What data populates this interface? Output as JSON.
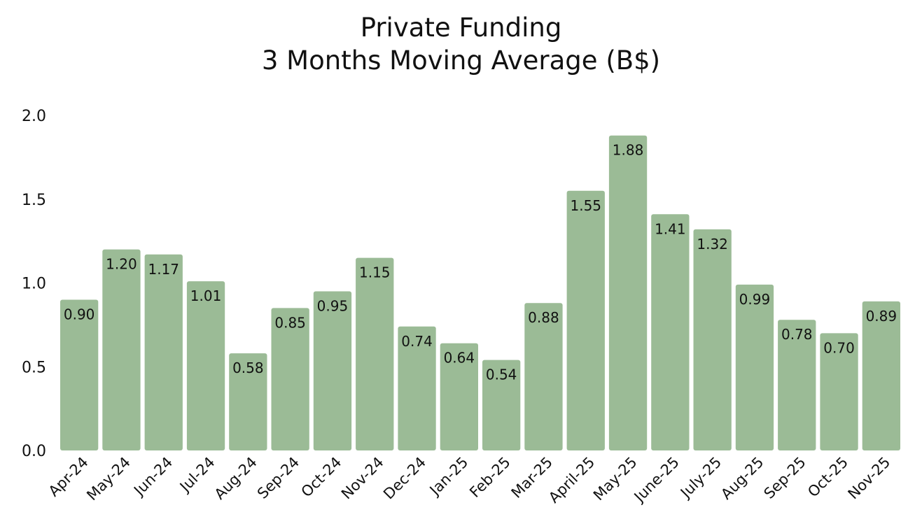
{
  "chart_data": {
    "type": "bar",
    "title": "Private Funding",
    "subtitle": "3 Months Moving Average (B$)",
    "categories": [
      "Apr-24",
      "May-24",
      "Jun-24",
      "Jul-24",
      "Aug-24",
      "Sep-24",
      "Oct-24",
      "Nov-24",
      "Dec-24",
      "Jan-25",
      "Feb-25",
      "Mar-25",
      "April-25",
      "May-25",
      "June-25",
      "July-25",
      "Aug-25",
      "Sep-25",
      "Oct-25",
      "Nov-25"
    ],
    "values": [
      0.9,
      1.2,
      1.17,
      1.01,
      0.58,
      0.85,
      0.95,
      1.15,
      0.74,
      0.64,
      0.54,
      0.88,
      1.55,
      1.88,
      1.41,
      1.32,
      0.99,
      0.78,
      0.7,
      0.89
    ],
    "data_labels": [
      "0.90",
      "1.20",
      "1.17",
      "1.01",
      "0.58",
      "0.85",
      "0.95",
      "1.15",
      "0.74",
      "0.64",
      "0.54",
      "0.88",
      "1.55",
      "1.88",
      "1.41",
      "1.32",
      "0.99",
      "0.78",
      "0.70",
      "0.89"
    ],
    "yticks": [
      "0.0",
      "0.5",
      "1.0",
      "1.5",
      "2.0"
    ],
    "ylim": [
      0,
      2.0
    ],
    "xlabel": "",
    "ylabel": "",
    "grid": false,
    "bar_color": "#9bbb96"
  }
}
